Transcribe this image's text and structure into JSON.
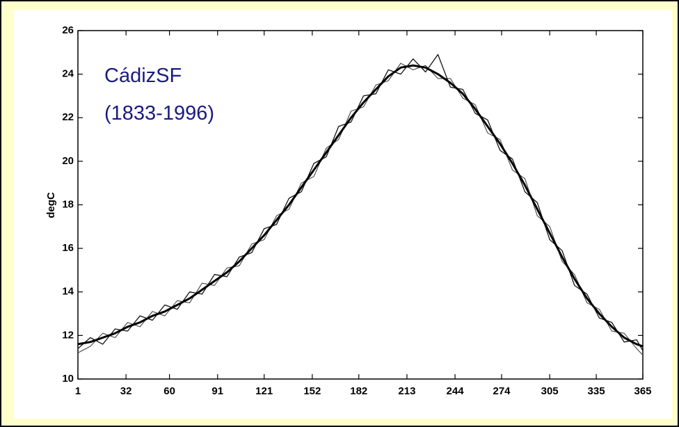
{
  "chart_data": {
    "type": "line",
    "y_label": "degC",
    "annotations": [
      "CádizSF",
      "(1833-1996)"
    ],
    "xlim": [
      1,
      365
    ],
    "ylim": [
      10,
      26
    ],
    "xticks": [
      1,
      32,
      60,
      91,
      121,
      152,
      182,
      213,
      244,
      274,
      305,
      335,
      365
    ],
    "yticks": [
      10,
      12,
      14,
      16,
      18,
      20,
      22,
      24,
      26
    ],
    "grid": false,
    "x": [
      1,
      9,
      17,
      25,
      33,
      41,
      49,
      57,
      65,
      73,
      81,
      89,
      97,
      105,
      113,
      121,
      129,
      137,
      145,
      153,
      161,
      169,
      177,
      185,
      193,
      201,
      209,
      217,
      225,
      233,
      241,
      249,
      257,
      265,
      273,
      281,
      289,
      297,
      305,
      313,
      321,
      329,
      337,
      345,
      353,
      361,
      365
    ],
    "series": [
      {
        "color": "#444444",
        "values": [
          11.2,
          11.5,
          12.1,
          11.9,
          12.6,
          12.4,
          13.1,
          12.9,
          13.6,
          13.5,
          14.4,
          14.3,
          15.1,
          15.2,
          16.2,
          16.4,
          17.5,
          17.8,
          19.0,
          19.3,
          20.6,
          21.0,
          22.3,
          22.5,
          23.5,
          23.7,
          24.5,
          24.2,
          24.4,
          23.8,
          23.8,
          22.9,
          22.6,
          21.3,
          21.0,
          19.6,
          19.2,
          17.5,
          17.0,
          15.4,
          14.8,
          13.5,
          13.2,
          12.2,
          12.1,
          11.4,
          11.1
        ]
      },
      {
        "color": "#111111",
        "values": [
          11.4,
          11.9,
          11.6,
          12.3,
          12.2,
          12.9,
          12.7,
          13.4,
          13.2,
          14.0,
          13.9,
          14.8,
          14.7,
          15.6,
          15.8,
          16.9,
          17.1,
          18.3,
          18.6,
          19.9,
          20.2,
          21.6,
          21.8,
          23.0,
          23.1,
          24.2,
          24.0,
          24.7,
          24.1,
          24.9,
          23.4,
          23.3,
          22.2,
          21.9,
          20.5,
          20.1,
          18.6,
          18.1,
          16.4,
          15.9,
          14.3,
          13.9,
          12.8,
          12.6,
          11.7,
          11.8,
          11.3
        ]
      },
      {
        "color": "#000000",
        "values": [
          11.6,
          11.7,
          11.9,
          12.1,
          12.4,
          12.6,
          12.9,
          13.1,
          13.4,
          13.7,
          14.1,
          14.5,
          14.9,
          15.4,
          16.0,
          16.6,
          17.3,
          18.0,
          18.8,
          19.6,
          20.4,
          21.2,
          22.0,
          22.7,
          23.3,
          23.9,
          24.3,
          24.4,
          24.3,
          24.0,
          23.6,
          23.1,
          22.4,
          21.6,
          20.8,
          19.9,
          18.9,
          17.8,
          16.7,
          15.6,
          14.6,
          13.7,
          13.0,
          12.4,
          11.9,
          11.6,
          11.5
        ]
      }
    ]
  }
}
